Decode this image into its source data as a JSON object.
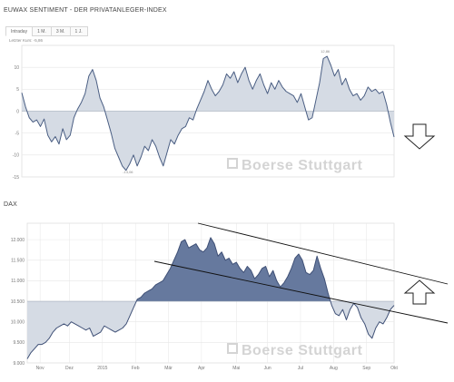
{
  "sentiment": {
    "title": "EUWAX SENTIMENT - DER PRIVATANLEGER-INDEX",
    "tabs": [
      {
        "label": "Intraday",
        "active": true
      },
      {
        "label": "1 M."
      },
      {
        "label": "3 M."
      },
      {
        "label": "1 J."
      }
    ],
    "last_value": "Letzter Kurs: -5,86",
    "watermark": "Boerse Stuttgart"
  },
  "dax": {
    "title": "DAX",
    "watermark": "Boerse Stuttgart"
  },
  "arrows": {
    "down": "down-arrow",
    "up": "up-arrow"
  },
  "colors": {
    "sent_line": "#4a5e83",
    "sent_fill": "#d5dbe4",
    "dax_line": "#3f5076",
    "dax_above_fill": "#66799e",
    "dax_below_fill": "#d5dbe4",
    "grid": "#e6e6e6"
  },
  "chart_data": [
    {
      "type": "area",
      "title": "EUWAX SENTIMENT - DER PRIVATANLEGER-INDEX",
      "ylim": [
        -15,
        15
      ],
      "yticks": [
        -15,
        -10,
        -5,
        0,
        5,
        10
      ],
      "ytick_labels": [
        "-15",
        "-10",
        "-5",
        "0",
        "5",
        "10"
      ],
      "baseline": 0,
      "grid": true,
      "annotations": [
        {
          "text": "12,86",
          "x": 0.815,
          "y": 12.9
        },
        {
          "text": "-13,06",
          "x": 0.285,
          "y": -13.1
        }
      ],
      "x": [
        0,
        0.01,
        0.02,
        0.03,
        0.04,
        0.05,
        0.06,
        0.07,
        0.08,
        0.09,
        0.1,
        0.11,
        0.12,
        0.13,
        0.14,
        0.15,
        0.16,
        0.17,
        0.18,
        0.19,
        0.2,
        0.21,
        0.22,
        0.23,
        0.24,
        0.25,
        0.26,
        0.27,
        0.28,
        0.29,
        0.3,
        0.31,
        0.32,
        0.33,
        0.34,
        0.35,
        0.36,
        0.37,
        0.38,
        0.39,
        0.4,
        0.41,
        0.42,
        0.43,
        0.44,
        0.45,
        0.46,
        0.47,
        0.48,
        0.49,
        0.5,
        0.51,
        0.52,
        0.53,
        0.54,
        0.55,
        0.56,
        0.57,
        0.58,
        0.59,
        0.6,
        0.61,
        0.62,
        0.63,
        0.64,
        0.65,
        0.66,
        0.67,
        0.68,
        0.69,
        0.7,
        0.71,
        0.72,
        0.73,
        0.74,
        0.75,
        0.76,
        0.77,
        0.78,
        0.79,
        0.8,
        0.81,
        0.82,
        0.83,
        0.84,
        0.85,
        0.86,
        0.87,
        0.88,
        0.89,
        0.9,
        0.91,
        0.92,
        0.93,
        0.94,
        0.95,
        0.96,
        0.97,
        0.98,
        0.99,
        1.0
      ],
      "values": [
        4.2,
        1.0,
        -1.5,
        -2.5,
        -2.0,
        -3.5,
        -1.8,
        -5.5,
        -7.0,
        -5.8,
        -7.5,
        -4.0,
        -6.5,
        -5.5,
        -1.5,
        0.5,
        2.0,
        4.0,
        8.0,
        9.5,
        7.0,
        3.0,
        1.0,
        -2.0,
        -5.0,
        -8.5,
        -10.5,
        -12.5,
        -13.5,
        -12.0,
        -10.0,
        -12.5,
        -10.5,
        -8.0,
        -9.0,
        -6.5,
        -8.0,
        -10.5,
        -12.5,
        -9.5,
        -6.5,
        -7.5,
        -5.5,
        -4.0,
        -3.5,
        -1.5,
        -2.0,
        0.5,
        2.5,
        4.5,
        7.0,
        5.0,
        3.5,
        4.5,
        6.0,
        8.5,
        7.5,
        9.0,
        6.5,
        8.5,
        10.0,
        7.0,
        5.0,
        7.0,
        8.5,
        6.0,
        4.0,
        6.5,
        5.0,
        7.0,
        5.5,
        4.5,
        4.0,
        3.5,
        2.0,
        4.0,
        1.0,
        -2.0,
        -1.5,
        2.5,
        6.5,
        12.0,
        12.5,
        10.5,
        8.0,
        9.5,
        6.0,
        7.5,
        5.0,
        3.5,
        4.0,
        2.5,
        3.5,
        5.5,
        4.5,
        5.0,
        4.0,
        4.5,
        1.5,
        -2.5,
        -5.9
      ]
    },
    {
      "type": "area",
      "title": "DAX",
      "ylim": [
        9000,
        12400
      ],
      "yticks": [
        9000,
        9500,
        10000,
        10500,
        11000,
        11500,
        12000
      ],
      "ytick_labels": [
        "9.000",
        "9.500",
        "10.000",
        "10.500",
        "11.000",
        "11.500",
        "12.000"
      ],
      "baseline": 10500,
      "categories": [
        "Nov",
        "Dez",
        "2015",
        "Feb",
        "Mär",
        "Apr",
        "Mai",
        "Jun",
        "Jul",
        "Aug",
        "Sep",
        "Okt"
      ],
      "category_x": [
        0.035,
        0.115,
        0.205,
        0.295,
        0.385,
        0.475,
        0.57,
        0.655,
        0.745,
        0.835,
        0.925,
        1.0
      ],
      "grid": true,
      "x": [
        0,
        0.01,
        0.02,
        0.03,
        0.04,
        0.05,
        0.06,
        0.07,
        0.08,
        0.09,
        0.1,
        0.11,
        0.12,
        0.13,
        0.14,
        0.15,
        0.16,
        0.17,
        0.18,
        0.19,
        0.2,
        0.21,
        0.22,
        0.23,
        0.24,
        0.25,
        0.26,
        0.27,
        0.28,
        0.29,
        0.3,
        0.31,
        0.32,
        0.33,
        0.34,
        0.35,
        0.36,
        0.37,
        0.38,
        0.39,
        0.4,
        0.41,
        0.42,
        0.43,
        0.44,
        0.45,
        0.46,
        0.47,
        0.48,
        0.49,
        0.5,
        0.51,
        0.52,
        0.53,
        0.54,
        0.55,
        0.56,
        0.57,
        0.58,
        0.59,
        0.6,
        0.61,
        0.62,
        0.63,
        0.64,
        0.65,
        0.66,
        0.67,
        0.68,
        0.69,
        0.7,
        0.71,
        0.72,
        0.73,
        0.74,
        0.75,
        0.76,
        0.77,
        0.78,
        0.79,
        0.8,
        0.81,
        0.82,
        0.83,
        0.84,
        0.85,
        0.86,
        0.87,
        0.88,
        0.89,
        0.9,
        0.91,
        0.92,
        0.93,
        0.94,
        0.95,
        0.96,
        0.97,
        0.98,
        0.99,
        1.0
      ],
      "values": [
        9100,
        9250,
        9350,
        9450,
        9450,
        9500,
        9600,
        9750,
        9850,
        9900,
        9950,
        9900,
        10000,
        9950,
        9900,
        9850,
        9800,
        9850,
        9650,
        9700,
        9750,
        9900,
        9850,
        9800,
        9750,
        9800,
        9850,
        9950,
        10150,
        10350,
        10550,
        10600,
        10700,
        10750,
        10800,
        10900,
        10950,
        11000,
        11150,
        11300,
        11500,
        11700,
        11950,
        12000,
        11800,
        11850,
        11900,
        11750,
        11700,
        11800,
        12050,
        11900,
        11600,
        11700,
        11500,
        11550,
        11400,
        11450,
        11300,
        11200,
        11350,
        11250,
        11050,
        11150,
        11300,
        11350,
        11100,
        11250,
        11000,
        10850,
        10950,
        11100,
        11300,
        11550,
        11650,
        11500,
        11200,
        11150,
        11250,
        11600,
        11300,
        11050,
        10700,
        10400,
        10200,
        10150,
        10300,
        10050,
        10300,
        10450,
        10350,
        10100,
        9950,
        9700,
        9600,
        9850,
        10000,
        9950,
        10100,
        10300,
        10400
      ]
    }
  ]
}
